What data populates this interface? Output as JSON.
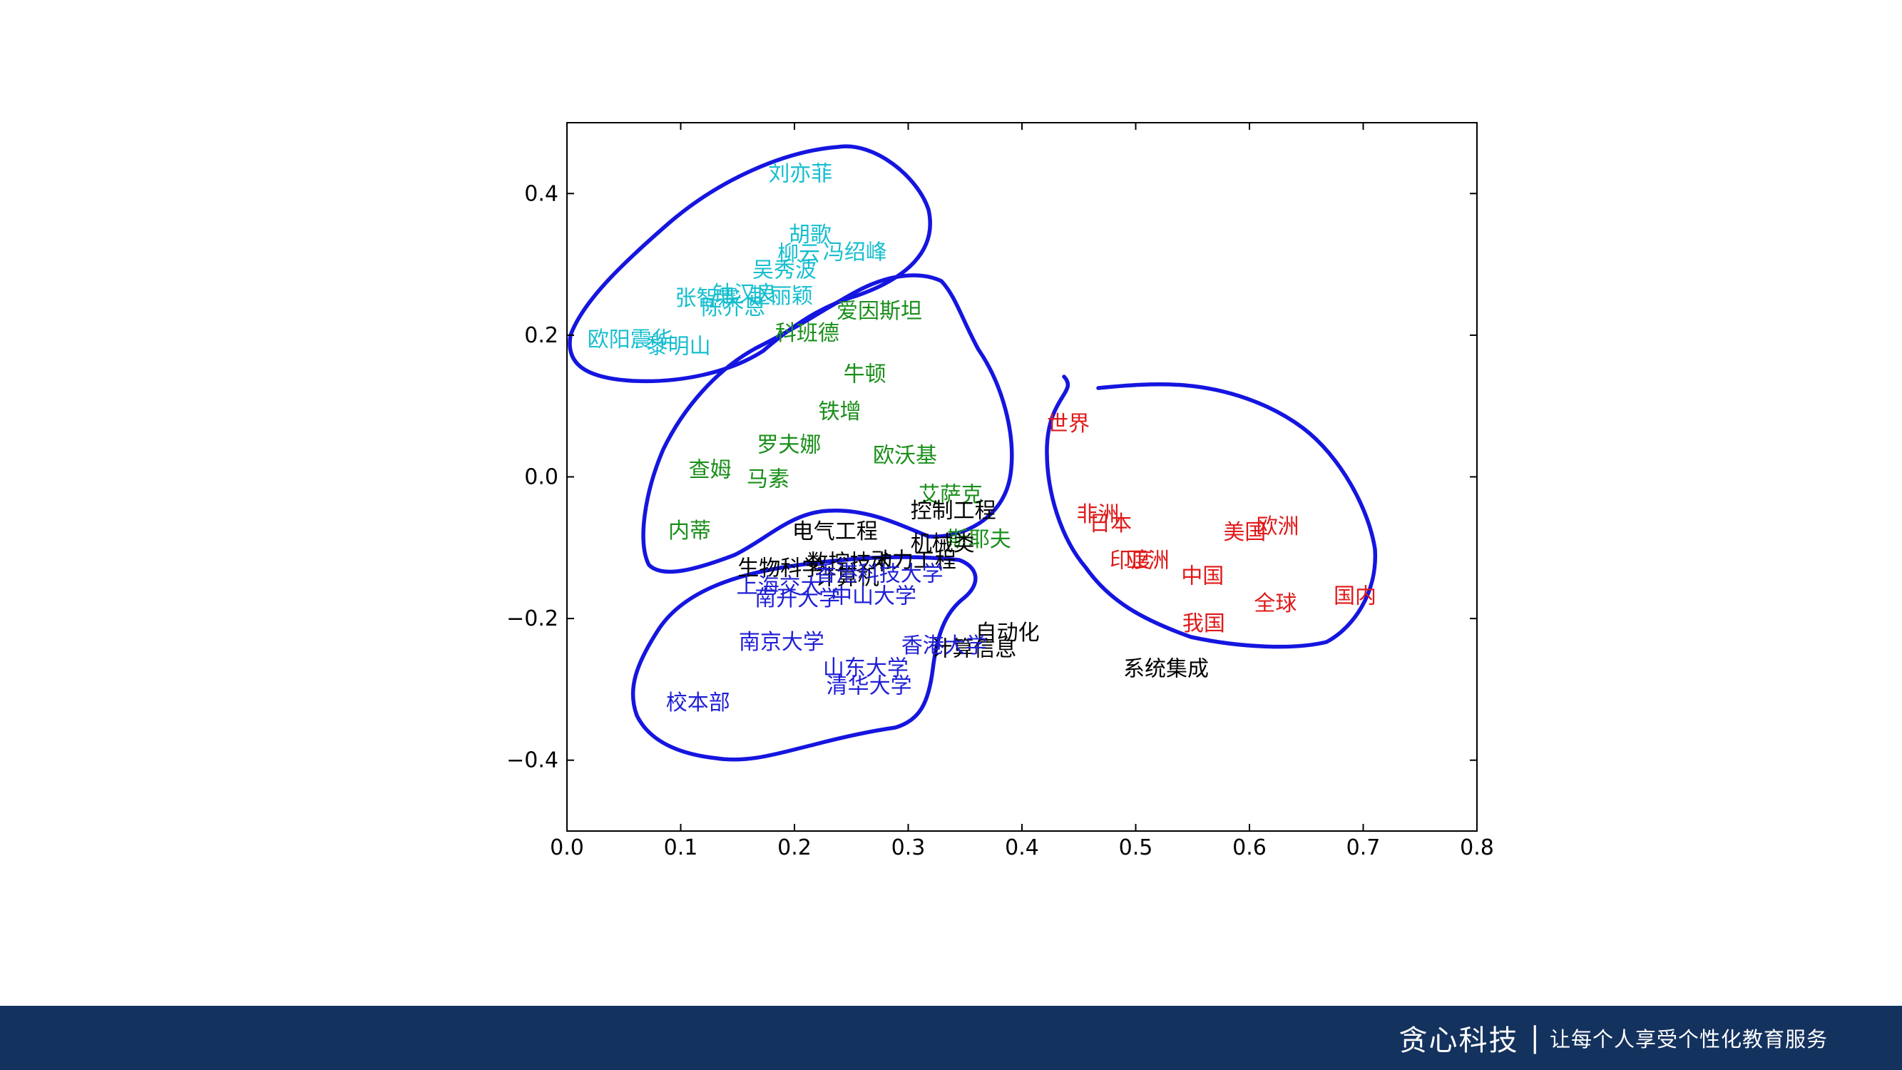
{
  "colors": {
    "cyan": "#17becf",
    "green": "#1a8f1a",
    "black": "#000000",
    "blue": "#1f1fd6",
    "red": "#e01a1a",
    "circle": "#1515e0",
    "footer": "#14325e"
  },
  "footer": {
    "brand": "贪心科技",
    "separator": "|",
    "slogan": "让每个人享受个性化教育服务"
  },
  "chart_data": {
    "type": "scatter",
    "title": "",
    "xlabel": "",
    "ylabel": "",
    "xlim": [
      0.0,
      0.8
    ],
    "ylim": [
      -0.5,
      0.5
    ],
    "xticks": [
      "0.0",
      "0.1",
      "0.2",
      "0.3",
      "0.4",
      "0.5",
      "0.6",
      "0.7",
      "0.8"
    ],
    "yticks": [
      "−0.4",
      "−0.2",
      "0.0",
      "0.2",
      "0.4"
    ],
    "grid": false,
    "series": [
      {
        "color": "cyan",
        "points": [
          {
            "label": "刘亦菲",
            "x": 0.177,
            "y": 0.418
          },
          {
            "label": "胡歌",
            "x": 0.195,
            "y": 0.332
          },
          {
            "label": "柳云",
            "x": 0.185,
            "y": 0.305
          },
          {
            "label": "冯绍峰",
            "x": 0.225,
            "y": 0.307
          },
          {
            "label": "吴秀波",
            "x": 0.163,
            "y": 0.282
          },
          {
            "label": "张智霖",
            "x": 0.095,
            "y": 0.242
          },
          {
            "label": "钟汉良",
            "x": 0.128,
            "y": 0.248
          },
          {
            "label": "赵丽颖",
            "x": 0.16,
            "y": 0.245
          },
          {
            "label": "陈乔恩",
            "x": 0.118,
            "y": 0.229
          },
          {
            "label": "欧阳震华",
            "x": 0.018,
            "y": 0.184
          },
          {
            "label": "黎明山",
            "x": 0.07,
            "y": 0.174
          }
        ]
      },
      {
        "color": "green",
        "points": [
          {
            "label": "爱因斯坦",
            "x": 0.237,
            "y": 0.224
          },
          {
            "label": "科班德",
            "x": 0.183,
            "y": 0.193
          },
          {
            "label": "牛顿",
            "x": 0.243,
            "y": 0.135
          },
          {
            "label": "铁增",
            "x": 0.221,
            "y": 0.082
          },
          {
            "label": "罗夫娜",
            "x": 0.167,
            "y": 0.035
          },
          {
            "label": "欧沃基",
            "x": 0.269,
            "y": 0.02
          },
          {
            "label": "查姆",
            "x": 0.107,
            "y": 0.0
          },
          {
            "label": "马素",
            "x": 0.158,
            "y": -0.013
          },
          {
            "label": "艾萨克",
            "x": 0.309,
            "y": -0.035
          },
          {
            "label": "内蒂",
            "x": 0.089,
            "y": -0.086
          },
          {
            "label": "斯耶夫",
            "x": 0.334,
            "y": -0.098
          }
        ]
      },
      {
        "color": "black",
        "points": [
          {
            "label": "电气工程",
            "x": 0.198,
            "y": -0.087
          },
          {
            "label": "控制工程",
            "x": 0.302,
            "y": -0.058
          },
          {
            "label": "机械类",
            "x": 0.302,
            "y": -0.104
          },
          {
            "label": "数控技术",
            "x": 0.211,
            "y": -0.131
          },
          {
            "label": "生物科学",
            "x": 0.15,
            "y": -0.139
          },
          {
            "label": "动力工程",
            "x": 0.267,
            "y": -0.128
          },
          {
            "label": "计算机",
            "x": 0.218,
            "y": -0.152
          },
          {
            "label": "自动化",
            "x": 0.359,
            "y": -0.23
          },
          {
            "label": "计算信息",
            "x": 0.32,
            "y": -0.253
          },
          {
            "label": "系统集成",
            "x": 0.489,
            "y": -0.281
          }
        ]
      },
      {
        "color": "blue",
        "points": [
          {
            "label": "香港科技大学",
            "x": 0.218,
            "y": -0.147
          },
          {
            "label": "上海交大",
            "x": 0.149,
            "y": -0.164
          },
          {
            "label": "中山大学",
            "x": 0.232,
            "y": -0.178
          },
          {
            "label": "南开大学",
            "x": 0.165,
            "y": -0.182
          },
          {
            "label": "南京大学",
            "x": 0.151,
            "y": -0.243
          },
          {
            "label": "香港大学",
            "x": 0.294,
            "y": -0.248
          },
          {
            "label": "山东大学",
            "x": 0.225,
            "y": -0.28
          },
          {
            "label": "清华大学",
            "x": 0.228,
            "y": -0.305
          },
          {
            "label": "校本部",
            "x": 0.087,
            "y": -0.329
          }
        ]
      },
      {
        "color": "red",
        "points": [
          {
            "label": "世界",
            "x": 0.422,
            "y": 0.065
          },
          {
            "label": "非洲",
            "x": 0.448,
            "y": -0.063
          },
          {
            "label": "日本",
            "x": 0.459,
            "y": -0.076
          },
          {
            "label": "印度",
            "x": 0.477,
            "y": -0.128
          },
          {
            "label": "亚洲",
            "x": 0.492,
            "y": -0.128
          },
          {
            "label": "美国",
            "x": 0.577,
            "y": -0.088
          },
          {
            "label": "欧洲",
            "x": 0.606,
            "y": -0.08
          },
          {
            "label": "中国",
            "x": 0.54,
            "y": -0.15
          },
          {
            "label": "全球",
            "x": 0.604,
            "y": -0.189
          },
          {
            "label": "国内",
            "x": 0.674,
            "y": -0.178
          },
          {
            "label": "我国",
            "x": 0.541,
            "y": -0.217
          }
        ]
      }
    ],
    "annotations": {
      "hand_drawn_outlines": 4,
      "outline_color": "circle"
    }
  }
}
